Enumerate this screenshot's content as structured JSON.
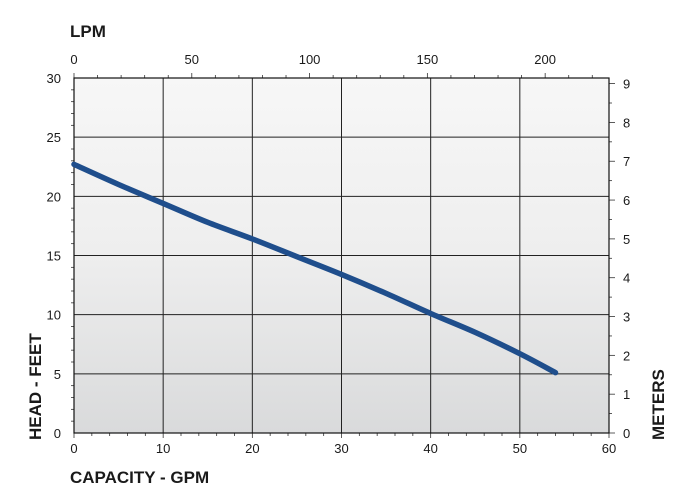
{
  "chart_data": {
    "type": "line",
    "xlabel": "CAPACITY - GPM",
    "ylabel": "HEAD - FEET",
    "x2label": "LPM",
    "y2label": "METERS",
    "xlim": [
      0,
      60
    ],
    "ylim": [
      0,
      30
    ],
    "x2lim": [
      0,
      227.1
    ],
    "y2lim": [
      0,
      9.144
    ],
    "x_ticks": [
      0,
      10,
      20,
      30,
      40,
      50,
      60
    ],
    "y_ticks": [
      0,
      5,
      10,
      15,
      20,
      25,
      30
    ],
    "x2_ticks": [
      0,
      50,
      100,
      150,
      200
    ],
    "y2_ticks": [
      0,
      1,
      2,
      3,
      4,
      5,
      6,
      7,
      8,
      9
    ],
    "grid": true,
    "background": "light-gray gradient",
    "series": [
      {
        "color": "#1f4e8c",
        "x": [
          0,
          5,
          10,
          15,
          20,
          25,
          30,
          35,
          40,
          45,
          50,
          54
        ],
        "y": [
          22.7,
          21.0,
          19.4,
          17.8,
          16.4,
          14.9,
          13.4,
          11.8,
          10.1,
          8.5,
          6.7,
          5.1
        ]
      }
    ]
  }
}
